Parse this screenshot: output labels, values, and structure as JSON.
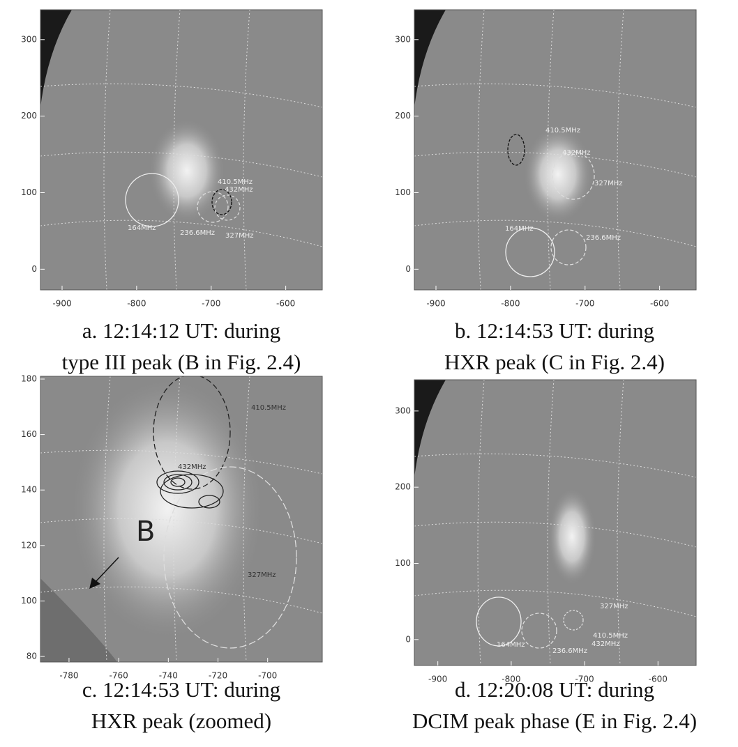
{
  "panels": [
    {
      "caption": [
        "a. 12:14:12 UT: during",
        "type III peak (B in Fig. 2.4)"
      ],
      "xlim": [
        -929,
        -551
      ],
      "ylim": [
        -27,
        339
      ],
      "xticks": [
        -900,
        -800,
        -700,
        -600
      ],
      "yticks": [
        0,
        100,
        200,
        300
      ],
      "labels": [
        "410.5MHz",
        "432MHz",
        "164MHz",
        "236.6MHz",
        "327MHz"
      ]
    },
    {
      "caption": [
        "b. 12:14:53 UT: during",
        "HXR peak (C in Fig. 2.4)"
      ],
      "xlim": [
        -929,
        -551
      ],
      "ylim": [
        -27,
        339
      ],
      "xticks": [
        -900,
        -800,
        -700,
        -600
      ],
      "yticks": [
        0,
        100,
        200,
        300
      ],
      "labels": [
        "410.5MHz",
        "432MHz",
        "327MHz",
        "164MHz",
        "236.6MHz"
      ]
    },
    {
      "caption": [
        "c. 12:14:53 UT: during",
        "HXR peak (zoomed)"
      ],
      "xlim": [
        -791.5,
        -678
      ],
      "ylim": [
        78,
        181
      ],
      "xticks": [
        -780,
        -760,
        -740,
        -720,
        -700
      ],
      "yticks": [
        80,
        100,
        120,
        140,
        160,
        180
      ],
      "labels": [
        "410.5MHz",
        "432MHz",
        "327MHz",
        "B"
      ]
    },
    {
      "caption": [
        "d. 12:20:08 UT: during",
        "DCIM peak phase (E in Fig. 2.4)"
      ],
      "xlim": [
        -932,
        -548
      ],
      "ylim": [
        -34,
        341
      ],
      "xticks": [
        -900,
        -800,
        -700,
        -600
      ],
      "yticks": [
        0,
        100,
        200,
        300
      ],
      "labels": [
        "327MHz",
        "410.5MHz",
        "432MHz",
        "164MHz",
        "236.6MHz"
      ]
    }
  ]
}
